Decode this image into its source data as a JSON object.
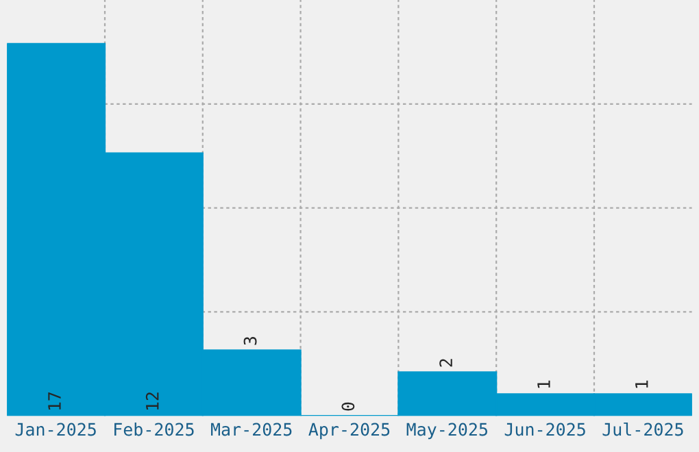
{
  "chart_data": {
    "type": "bar",
    "categories": [
      "Jan-2025",
      "Feb-2025",
      "Mar-2025",
      "Apr-2025",
      "May-2025",
      "Jun-2025",
      "Jul-2025"
    ],
    "values": [
      17,
      12,
      3,
      0,
      2,
      1,
      1
    ],
    "color": "#0099cc",
    "data_labels": true,
    "grid": true,
    "tick_labels": "x",
    "ylim": [
      0,
      19
    ],
    "yticks": [
      {
        "value": 4.75,
        "label": null
      },
      {
        "value": 9.5,
        "label": null
      },
      {
        "value": 14.25,
        "label": null
      }
    ]
  }
}
